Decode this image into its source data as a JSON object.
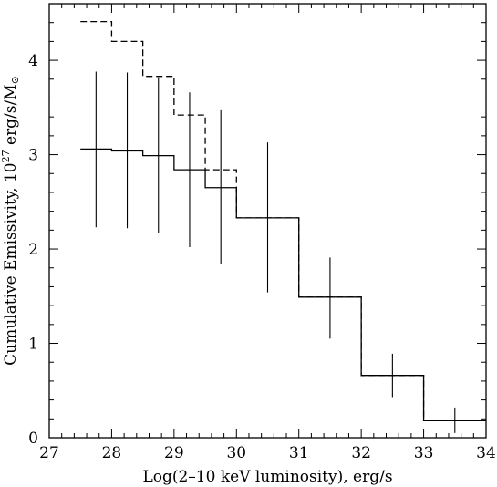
{
  "chart_data": {
    "type": "line",
    "xlabel": "Log(2–10 keV luminosity), erg/s",
    "ylabel_main": "Cumulative Emissivity, 10",
    "ylabel_exp": "27",
    "ylabel_unit": " erg/s/M",
    "ylabel_sub": "⊙",
    "xlim": [
      27,
      34
    ],
    "ylim": [
      0,
      4.6
    ],
    "xticks": [
      27,
      28,
      29,
      30,
      31,
      32,
      33,
      34
    ],
    "yticks": [
      0,
      1,
      2,
      3,
      4
    ],
    "xtick_labels": [
      "27",
      "28",
      "29",
      "30",
      "31",
      "32",
      "33",
      "34"
    ],
    "ytick_labels": [
      "0",
      "1",
      "2",
      "3",
      "4"
    ],
    "grid": false,
    "series": [
      {
        "style": "solid",
        "steps": [
          {
            "x0": 27.5,
            "x1": 28.0,
            "y": 3.06
          },
          {
            "x0": 28.0,
            "x1": 28.5,
            "y": 3.04
          },
          {
            "x0": 28.5,
            "x1": 29.0,
            "y": 2.99
          },
          {
            "x0": 29.0,
            "x1": 29.5,
            "y": 2.84
          },
          {
            "x0": 29.5,
            "x1": 30.0,
            "y": 2.65
          },
          {
            "x0": 30.0,
            "x1": 31.0,
            "y": 2.33
          },
          {
            "x0": 31.0,
            "x1": 32.0,
            "y": 1.49
          },
          {
            "x0": 32.0,
            "x1": 33.0,
            "y": 0.66
          },
          {
            "x0": 33.0,
            "x1": 34.0,
            "y": 0.18
          }
        ]
      },
      {
        "style": "dashed",
        "steps": [
          {
            "x0": 27.5,
            "x1": 28.0,
            "y": 4.41
          },
          {
            "x0": 28.0,
            "x1": 28.5,
            "y": 4.2
          },
          {
            "x0": 28.5,
            "x1": 29.0,
            "y": 3.83
          },
          {
            "x0": 29.0,
            "x1": 29.5,
            "y": 3.42
          },
          {
            "x0": 29.5,
            "x1": 30.0,
            "y": 2.84
          },
          {
            "x0": 30.0,
            "x1": 31.0,
            "y": 2.33
          },
          {
            "x0": 31.0,
            "x1": 32.0,
            "y": 1.49
          },
          {
            "x0": 32.0,
            "x1": 33.0,
            "y": 0.66
          },
          {
            "x0": 33.0,
            "x1": 34.0,
            "y": 0.18
          }
        ]
      }
    ],
    "error_bars": [
      {
        "x": 27.75,
        "ylow": 2.23,
        "yhigh": 3.88
      },
      {
        "x": 28.25,
        "ylow": 2.22,
        "yhigh": 3.87
      },
      {
        "x": 28.75,
        "ylow": 2.17,
        "yhigh": 3.82
      },
      {
        "x": 29.25,
        "ylow": 2.02,
        "yhigh": 3.66
      },
      {
        "x": 29.75,
        "ylow": 1.84,
        "yhigh": 3.47
      },
      {
        "x": 30.5,
        "ylow": 1.54,
        "yhigh": 3.13
      },
      {
        "x": 31.5,
        "ylow": 1.05,
        "yhigh": 1.91
      },
      {
        "x": 32.5,
        "ylow": 0.43,
        "yhigh": 0.89
      },
      {
        "x": 33.5,
        "ylow": 0.05,
        "yhigh": 0.32
      }
    ]
  }
}
